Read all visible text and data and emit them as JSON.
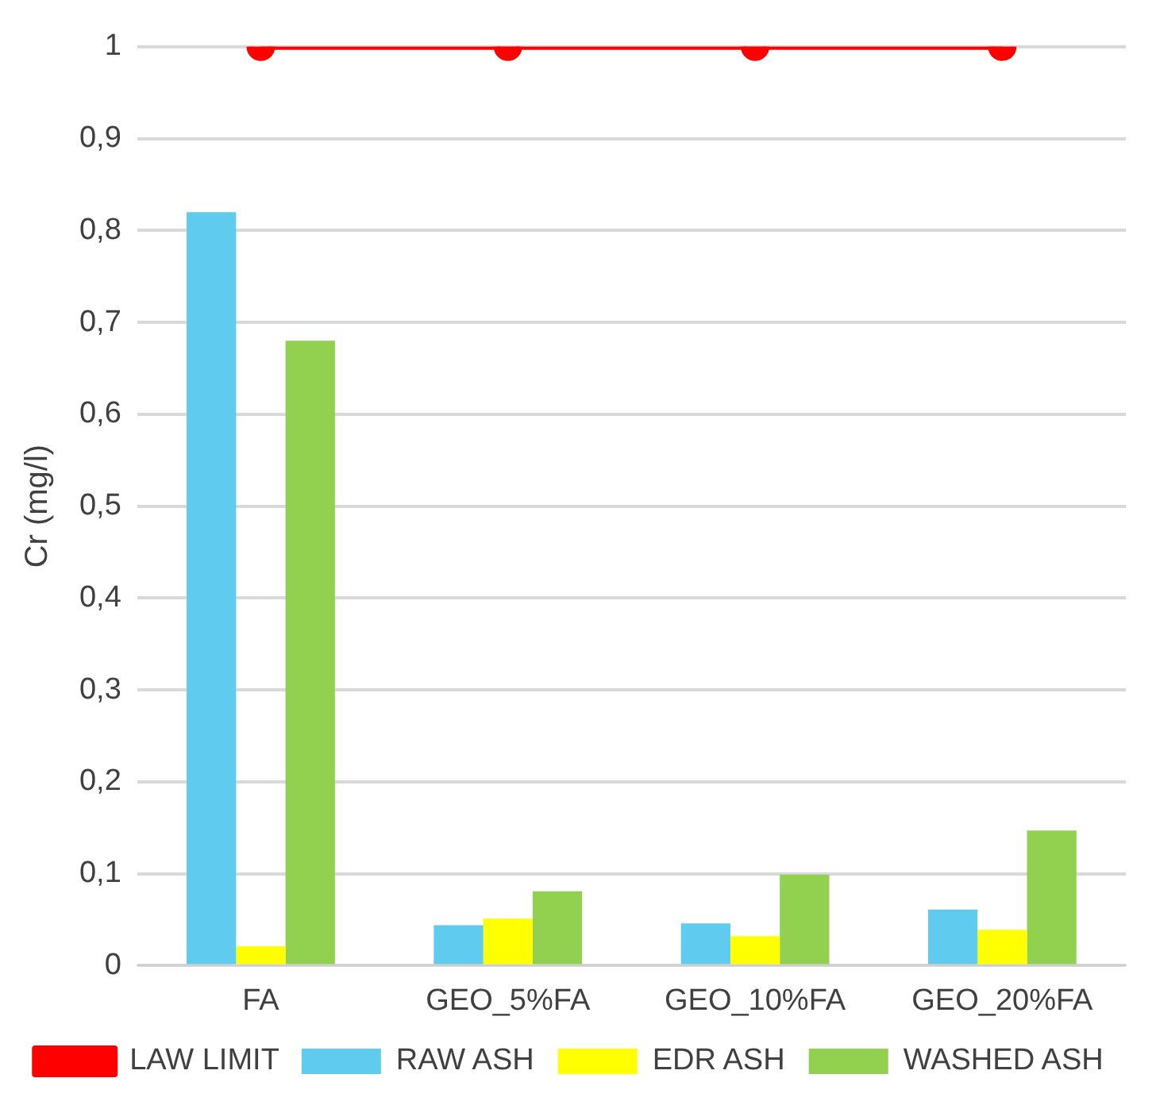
{
  "chart_data": {
    "type": "bar",
    "ylabel": "Cr (mg/l)",
    "categories": [
      "FA",
      "GEO_5%FA",
      "GEO_10%FA",
      "GEO_20%FA"
    ],
    "series": [
      {
        "name": "RAW ASH",
        "color": "#5ecbef",
        "values": [
          0.82,
          0.044,
          0.046,
          0.061
        ]
      },
      {
        "name": "EDR ASH",
        "color": "#ffff00",
        "values": [
          0.021,
          0.051,
          0.032,
          0.039
        ]
      },
      {
        "name": "WASHED ASH",
        "color": "#92d050",
        "values": [
          0.68,
          0.081,
          0.099,
          0.147
        ]
      },
      {
        "name": "LAW LIMIT",
        "type": "line",
        "color": "#ff0000",
        "marker": "circle",
        "values": [
          1,
          1,
          1,
          1
        ]
      }
    ],
    "ylim": [
      0,
      1
    ],
    "yticks": [
      {
        "value": 0,
        "label": "0"
      },
      {
        "value": 0.1,
        "label": "0,1"
      },
      {
        "value": 0.2,
        "label": "0,2"
      },
      {
        "value": 0.3,
        "label": "0,3"
      },
      {
        "value": 0.4,
        "label": "0,4"
      },
      {
        "value": 0.5,
        "label": "0,5"
      },
      {
        "value": 0.6,
        "label": "0,6"
      },
      {
        "value": 0.7,
        "label": "0,7"
      },
      {
        "value": 0.8,
        "label": "0,8"
      },
      {
        "value": 0.9,
        "label": "0,9"
      },
      {
        "value": 1,
        "label": "1"
      }
    ],
    "grid": "y",
    "legend": "bottom"
  }
}
